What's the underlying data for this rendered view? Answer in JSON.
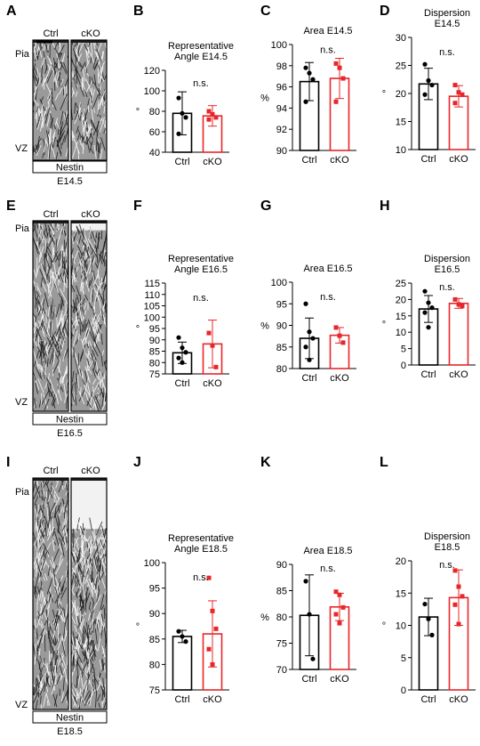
{
  "figure": {
    "rows": [
      {
        "image_panel": {
          "letter": "A",
          "labels": [
            "Ctrl",
            "cKO"
          ],
          "top_label": "Pia",
          "bottom_label": "VZ",
          "stain": "Nestin",
          "stage": "E14.5"
        }
      },
      {
        "image_panel": {
          "letter": "E",
          "labels": [
            "Ctrl",
            "cKO"
          ],
          "top_label": "Pia",
          "bottom_label": "VZ",
          "stain": "Nestin",
          "stage": "E16.5"
        }
      },
      {
        "image_panel": {
          "letter": "I",
          "labels": [
            "Ctrl",
            "cKO"
          ],
          "top_label": "Pia",
          "bottom_label": "VZ",
          "stain": "Nestin",
          "stage": "E18.5"
        }
      }
    ]
  },
  "colors": {
    "ctrl": "#000000",
    "cko": "#e8262a",
    "tissue_dark": "#1a1a1a",
    "tissue_light": "#f2f2f2"
  },
  "chart_data": [
    {
      "letter": "B",
      "type": "bar",
      "title": "Representative Angle E14.5",
      "title_lines": [
        "Representative",
        "Angle E14.5"
      ],
      "ylabel": "°",
      "ylim": [
        40,
        120
      ],
      "yticks": [
        40,
        60,
        80,
        100,
        120
      ],
      "categories": [
        "Ctrl",
        "cKO"
      ],
      "annotation": "n.s.",
      "series": [
        {
          "values": [
            78,
            75.5
          ],
          "error": [
            21,
            10
          ]
        }
      ],
      "points": [
        [
          93,
          78,
          74,
          58
        ],
        [
          80,
          77,
          74,
          72
        ]
      ]
    },
    {
      "letter": "C",
      "type": "bar",
      "title": "Area E14.5",
      "title_lines": [
        "Area E14.5"
      ],
      "ylabel": "%",
      "ylim": [
        90,
        100
      ],
      "yticks": [
        90,
        92,
        94,
        96,
        98,
        100
      ],
      "categories": [
        "Ctrl",
        "cKO"
      ],
      "annotation": "n.s.",
      "series": [
        {
          "values": [
            96.5,
            96.8
          ],
          "error": [
            1.8,
            1.9
          ]
        }
      ],
      "points": [
        [
          97.8,
          97.3,
          96.7,
          94.6
        ],
        [
          98.2,
          97.8,
          96.8,
          94.6
        ]
      ]
    },
    {
      "letter": "D",
      "type": "bar",
      "title": "Dispersion E14.5",
      "title_lines": [
        "Dispersion",
        "E14.5"
      ],
      "ylabel": "°",
      "ylim": [
        10,
        30
      ],
      "yticks": [
        10,
        15,
        20,
        25,
        30
      ],
      "categories": [
        "Ctrl",
        "cKO"
      ],
      "annotation": "n.s.",
      "series": [
        {
          "values": [
            21.7,
            19.5
          ],
          "error": [
            2.8,
            1.9
          ]
        }
      ],
      "points": [
        [
          25.2,
          22.3,
          21.5,
          19.8
        ],
        [
          21.5,
          20.2,
          19.8,
          18.3
        ]
      ]
    },
    {
      "letter": "F",
      "type": "bar",
      "title": "Representative Angle E16.5",
      "title_lines": [
        "Representative",
        "Angle E16.5"
      ],
      "ylabel": "°",
      "ylim": [
        75,
        115
      ],
      "yticks": [
        75,
        80,
        85,
        90,
        95,
        100,
        105,
        110,
        115
      ],
      "categories": [
        "Ctrl",
        "cKO"
      ],
      "annotation": "n.s.",
      "series": [
        {
          "values": [
            84.3,
            88.2
          ],
          "error": [
            4.7,
            10.5
          ]
        }
      ],
      "points": [
        [
          91,
          86.5,
          84.5,
          82,
          80
        ],
        [
          93,
          87.5,
          78
        ]
      ]
    },
    {
      "letter": "G",
      "type": "bar",
      "title": "Area E16.5",
      "title_lines": [
        "Area E16.5"
      ],
      "ylabel": "%",
      "ylim": [
        80,
        100
      ],
      "yticks": [
        80,
        85,
        90,
        95,
        100
      ],
      "categories": [
        "Ctrl",
        "cKO"
      ],
      "annotation": "n.s.",
      "series": [
        {
          "values": [
            87,
            87.7
          ],
          "error": [
            4.7,
            1.8
          ]
        }
      ],
      "points": [
        [
          95,
          88.5,
          87,
          85,
          82
        ],
        [
          89.5,
          87.6,
          86
        ]
      ]
    },
    {
      "letter": "H",
      "type": "bar",
      "title": "Dispersion E16.5",
      "title_lines": [
        "Dispersion",
        "E16.5"
      ],
      "ylabel": "°",
      "ylim": [
        0,
        25
      ],
      "yticks": [
        0,
        5,
        10,
        15,
        20,
        25
      ],
      "categories": [
        "Ctrl",
        "cKO"
      ],
      "annotation": "n.s.",
      "series": [
        {
          "values": [
            17.1,
            18.8
          ],
          "error": [
            4.1,
            1.5
          ]
        }
      ],
      "points": [
        [
          22.5,
          19,
          17.5,
          16,
          11.5
        ],
        [
          20,
          18.5,
          18
        ]
      ]
    },
    {
      "letter": "J",
      "type": "bar",
      "title": "Representative Angle E18.5",
      "title_lines": [
        "Representative",
        "Angle E18.5"
      ],
      "ylabel": "°",
      "ylim": [
        75,
        100
      ],
      "yticks": [
        75,
        80,
        85,
        90,
        95,
        100
      ],
      "categories": [
        "Ctrl",
        "cKO"
      ],
      "annotation": "n.s.",
      "series": [
        {
          "values": [
            85.5,
            86
          ],
          "error": [
            1.2,
            6.5
          ]
        }
      ],
      "points": [
        [
          86.5,
          85.5,
          84.5
        ],
        [
          97,
          90.5,
          87,
          83,
          80
        ]
      ]
    },
    {
      "letter": "K",
      "type": "bar",
      "title": "Area E18.5",
      "title_lines": [
        "Area E18.5"
      ],
      "ylabel": "%",
      "ylim": [
        70,
        90
      ],
      "yticks": [
        70,
        75,
        80,
        85,
        90
      ],
      "categories": [
        "Ctrl",
        "cKO"
      ],
      "annotation": "n.s.",
      "series": [
        {
          "values": [
            80.3,
            81.9
          ],
          "error": [
            7.7,
            2.6
          ]
        }
      ],
      "points": [
        [
          86.8,
          80.5,
          72
        ],
        [
          84.8,
          84.2,
          81.8,
          80.5,
          78.8
        ]
      ]
    },
    {
      "letter": "L",
      "type": "bar",
      "title": "Dispersion E18.5",
      "title_lines": [
        "Dispersion",
        "E18.5"
      ],
      "ylabel": "°",
      "ylim": [
        0,
        20
      ],
      "yticks": [
        0,
        5,
        10,
        15,
        20
      ],
      "categories": [
        "Ctrl",
        "cKO"
      ],
      "annotation": "n.s.",
      "series": [
        {
          "values": [
            11.3,
            14.3
          ],
          "error": [
            2.9,
            4.3
          ]
        }
      ],
      "points": [
        [
          13.3,
          11,
          8.5
        ],
        [
          18.5,
          16,
          14.5,
          13.2,
          10.2
        ]
      ]
    }
  ]
}
